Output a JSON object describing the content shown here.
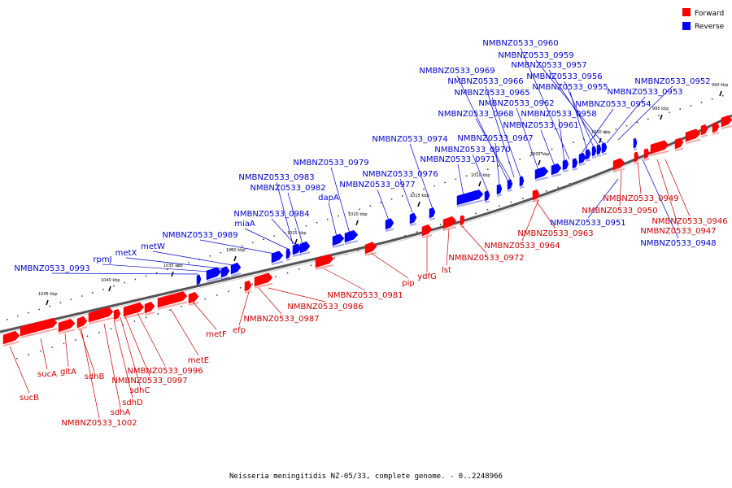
{
  "caption": "Neisseria meningitidis NZ-05/33, complete genome. - 0..2248966",
  "legend": [
    {
      "label": "Forward",
      "color": "#ff0000"
    },
    {
      "label": "Reverse",
      "color": "#0000ff"
    }
  ],
  "colors": {
    "forward": "#ff0000",
    "reverse": "#0000ff",
    "forward_label": "#cc0000",
    "reverse_label": "#0000cc",
    "backbone": "#555555"
  },
  "ticks": [
    "990 kbp",
    "995 kbp",
    "1000 kbp",
    "1005 kbp",
    "1010 kbp",
    "1015 kbp",
    "1020 kbp",
    "1025 kbp",
    "1030 kbp",
    "1035 kbp",
    "1040 kbp",
    "1045 kbp"
  ],
  "forward_genes": [
    "sucB",
    "sucA",
    "gltA",
    "sdhB",
    "NMBNZ0533_1002",
    "sdhA",
    "sdhD",
    "sdhC",
    "NMBNZ0533_0997",
    "NMBNZ0533_0996",
    "metE",
    "metF",
    "efp",
    "NMBNZ0533_0987",
    "NMBNZ0533_0986",
    "NMBNZ0533_0981",
    "pip",
    "ydfG",
    "lst",
    "NMBNZ0533_0972",
    "NMBNZ0533_0964",
    "NMBNZ0533_0963",
    "NMBNZ0533_0950",
    "NMBNZ0533_0949",
    "NMBNZ0533_0946",
    "NMBNZ0533_0947"
  ],
  "reverse_genes": [
    "NMBNZ0533_0993",
    "rpmJ",
    "metX",
    "metW",
    "NMBNZ0533_0989",
    "miaA",
    "NMBNZ0533_0984",
    "NMBNZ0533_0982",
    "NMBNZ0533_0983",
    "dapA",
    "NMBNZ0533_0979",
    "NMBNZ0533_0977",
    "NMBNZ0533_0976",
    "NMBNZ0533_0974",
    "NMBNZ0533_0971",
    "NMBNZ0533_0970",
    "NMBNZ0533_0967",
    "NMBNZ0533_0968",
    "NMBNZ0533_0961",
    "NMBNZ0533_0965",
    "NMBNZ0533_0962",
    "NMBNZ0533_0966",
    "NMBNZ0533_0958",
    "NMBNZ0533_0969",
    "NMBNZ0533_0954",
    "NMBNZ0533_0955",
    "NMBNZ0533_0956",
    "NMBNZ0533_0957",
    "NMBNZ0533_0959",
    "NMBNZ0533_0960",
    "NMBNZ0533_0953",
    "NMBNZ0533_0952",
    "NMBNZ0533_0951",
    "NMBNZ0533_0948"
  ]
}
